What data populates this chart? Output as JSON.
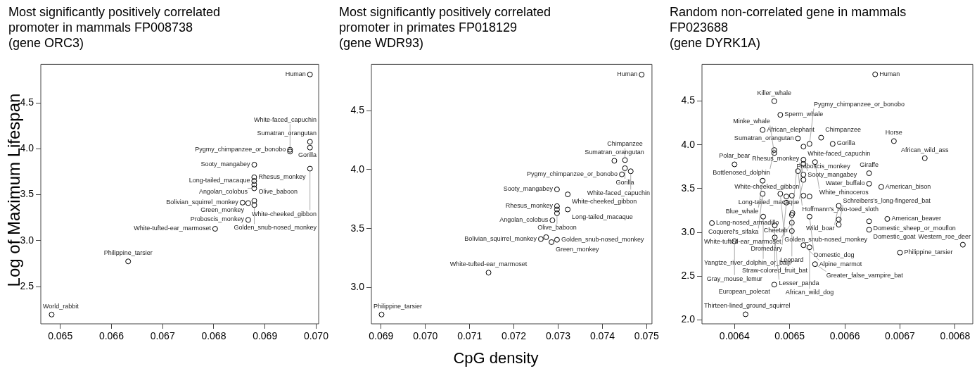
{
  "chart_data": [
    {
      "type": "scatter",
      "title": "Most significantly positively correlated\npromoter in mammals FP008738\n(gene ORC3)",
      "ylabel": "Log of Maximum Lifespan",
      "xlim": [
        0.06462,
        0.07005
      ],
      "ylim": [
        2.094,
        4.92
      ],
      "xticks": [
        0.065,
        0.066,
        0.067,
        0.068,
        0.069,
        {
          "value": 0.07,
          "label": "0.070"
        }
      ],
      "yticks": [
        2.5,
        {
          "value": 3,
          "label": "3.0"
        },
        3.5,
        {
          "value": 4,
          "label": "4.0"
        },
        4.5
      ],
      "grid": false,
      "marker": "circle",
      "series": [
        {
          "color": "#000000",
          "x": [
            0.06988,
            0.06988,
            0.06988,
            0.06949,
            0.06949,
            0.06988,
            0.068792,
            0.06879,
            0.06879,
            0.06879,
            0.06879,
            0.068562,
            0.068673,
            0.068792,
            0.068792,
            0.068673,
            0.068027,
            0.066327,
            0.064832
          ],
          "values": [
            4.81,
            4.076,
            4.013,
            3.99,
            3.97,
            3.784,
            3.827,
            3.69,
            3.65,
            3.61,
            3.57,
            3.414,
            3.409,
            3.434,
            3.388,
            3.226,
            3.129,
            2.774,
            2.195
          ]
        }
      ],
      "annotations": [
        {
          "text": "Human",
          "x": 0.06988,
          "y": 4.81
        },
        {
          "text": "Sumatran_orangutan",
          "x": 0.06988,
          "y": 4.076
        },
        {
          "text": "Gorilla",
          "x": 0.06988,
          "y": 4.013
        },
        {
          "text": "Pygmy_chimpanzee_or_bonobo",
          "x": 0.06949,
          "y": 3.99
        },
        {
          "text": "White-faced_capuchin",
          "x": 0.06949,
          "y": 3.97
        },
        {
          "text": "White-cheeked_gibbon",
          "x": 0.06988,
          "y": 3.784
        },
        {
          "text": "Sooty_mangabey",
          "x": 0.068792,
          "y": 3.827
        },
        {
          "text": "Rhesus_monkey",
          "x": 0.06879,
          "y": 3.69
        },
        {
          "text": "Long-tailed_macaque",
          "x": 0.06879,
          "y": 3.65
        },
        {
          "text": "Olive_baboon",
          "x": 0.06879,
          "y": 3.61
        },
        {
          "text": "Angolan_colobus",
          "x": 0.06879,
          "y": 3.57
        },
        {
          "text": "Bolivian_squirrel_monkey",
          "x": 0.068562,
          "y": 3.414
        },
        {
          "text": "Green_monkey",
          "x": 0.068673,
          "y": 3.409
        },
        {
          "text": "Golden_snub-nosed_monkey",
          "x": 0.068792,
          "y": 3.388
        },
        {
          "text": "Proboscis_monkey",
          "x": 0.068673,
          "y": 3.226
        },
        {
          "text": "White-tufted-ear_marmoset",
          "x": 0.068027,
          "y": 3.129
        },
        {
          "text": "Philippine_tarsier",
          "x": 0.066327,
          "y": 2.774
        },
        {
          "text": "World_rabbit",
          "x": 0.064832,
          "y": 2.195
        }
      ]
    },
    {
      "type": "scatter",
      "title": "Most significantly positively correlated\npromoter in primates FP018129\n(gene WDR93)",
      "xlabel": "CpG density",
      "xlim": [
        0.06878,
        0.07512
      ],
      "ylim": [
        2.692,
        4.893
      ],
      "xticks": [
        0.069,
        {
          "value": 0.07,
          "label": "0.070"
        },
        0.071,
        0.072,
        0.073,
        0.074,
        0.075
      ],
      "yticks": [
        {
          "value": 3,
          "label": "3.0"
        },
        3.5,
        {
          "value": 4,
          "label": "4.0"
        },
        4.5
      ],
      "grid": false,
      "marker": "circle",
      "series": [
        {
          "color": "#000000",
          "x": [
            0.074887,
            0.07427,
            0.07451,
            0.07451,
            0.07444,
            0.07464,
            0.072974,
            0.073216,
            0.072974,
            0.072974,
            0.073216,
            0.072974,
            0.07287,
            0.072609,
            0.072728,
            0.07285,
            0.072974,
            0.071427,
            0.06901
          ],
          "values": [
            4.806,
            4.075,
            4.081,
            4.012,
            3.96,
            3.986,
            3.832,
            3.79,
            3.69,
            3.662,
            3.662,
            3.63,
            3.57,
            3.411,
            3.427,
            3.385,
            3.405,
            3.126,
            2.771
          ]
        }
      ],
      "annotations": [
        {
          "text": "Human",
          "x": 0.074887,
          "y": 4.806
        },
        {
          "text": "Sumatran_orangutan",
          "x": 0.07427,
          "y": 4.075
        },
        {
          "text": "Chimpanzee",
          "x": 0.07451,
          "y": 4.081
        },
        {
          "text": "Gorilla",
          "x": 0.07451,
          "y": 4.012
        },
        {
          "text": "Pygmy_chimpanzee_or_bonobo",
          "x": 0.07444,
          "y": 3.96
        },
        {
          "text": "White-faced_capuchin",
          "x": 0.07464,
          "y": 3.986
        },
        {
          "text": "Sooty_mangabey",
          "x": 0.072974,
          "y": 3.832
        },
        {
          "text": "White-cheeked_gibbon",
          "x": 0.073216,
          "y": 3.79
        },
        {
          "text": "Rhesus_monkey",
          "x": 0.072974,
          "y": 3.69
        },
        {
          "text": "Long-tailed_macaque",
          "x": 0.073216,
          "y": 3.662
        },
        {
          "text": "Olive_baboon",
          "x": 0.072974,
          "y": 3.63
        },
        {
          "text": "Angolan_colobus",
          "x": 0.07287,
          "y": 3.57
        },
        {
          "text": "Bolivian_squirrel_monkey",
          "x": 0.072609,
          "y": 3.411
        },
        {
          "text": "Green_monkey",
          "x": 0.07285,
          "y": 3.385
        },
        {
          "text": "Golden_snub-nosed_monkey",
          "x": 0.072974,
          "y": 3.405
        },
        {
          "text": "White-tufted-ear_marmoset",
          "x": 0.071427,
          "y": 3.126
        },
        {
          "text": "Philippine_tarsier",
          "x": 0.06901,
          "y": 2.771
        }
      ]
    },
    {
      "type": "scatter",
      "title": "Random non-correlated gene in mammals\nFP023688\n(gene DYRK1A)",
      "xlim": [
        0.006341,
        0.006832
      ],
      "ylim": [
        1.955,
        4.92
      ],
      "xticks": [
        0.0064,
        0.0065,
        0.0066,
        0.0067,
        0.0068
      ],
      "yticks": [
        {
          "value": 2,
          "label": "2.0"
        },
        2.5,
        {
          "value": 3,
          "label": "3.0"
        },
        3.5,
        {
          "value": 4,
          "label": "4.0"
        },
        4.5
      ],
      "grid": false,
      "marker": "circle",
      "series": [
        {
          "color": "#000000",
          "x": [
            0.006655,
            0.006472,
            0.006483,
            0.006451,
            0.006689,
            0.006745,
            0.0064,
            0.006644,
            0.006644,
            0.006666,
            0.006515,
            0.006557,
            0.006536,
            0.006578,
            0.006525,
            0.006472,
            0.006472,
            0.006525,
            0.006546,
            0.006525,
            0.006515,
            0.006525,
            0.006525,
            0.006451,
            0.006451,
            0.006483,
            0.006494,
            0.006504,
            0.006525,
            0.006536,
            0.006589,
            0.006494,
            0.006504,
            0.006452,
            0.006359,
            0.006536,
            0.006505,
            0.006473,
            0.006504,
            0.006589,
            0.006589,
            0.006644,
            0.006677,
            0.006644,
            0.006504,
            0.006473,
            0.0064,
            0.006525,
            0.006536,
            0.006546,
            0.0067,
            0.006814,
            0.006472,
            0.00642
          ],
          "values": [
            4.806,
            4.5,
            4.343,
            4.17,
            4.043,
            3.848,
            3.777,
            3.676,
            3.556,
            3.519,
            4.074,
            4.082,
            4.011,
            4.011,
            3.98,
            3.941,
            3.907,
            3.83,
            3.803,
            3.782,
            3.7,
            3.66,
            3.6,
            3.59,
            3.441,
            3.441,
            3.41,
            3.42,
            3.42,
            3.41,
            3.303,
            3.34,
            3.2,
            3.18,
            3.106,
            3.18,
            3.22,
            3.08,
            3.11,
            3.149,
            3.088,
            3.127,
            3.154,
            3.03,
            3.016,
            2.942,
            2.899,
            2.854,
            2.83,
            2.637,
            2.769,
            2.859,
            2.403,
            2.064
          ]
        }
      ],
      "annotations": [
        {
          "text": "Human",
          "x": 0.006655,
          "y": 4.806
        },
        {
          "text": "Killer_whale",
          "x": 0.006472,
          "y": 4.5
        },
        {
          "text": "Sperm_whale",
          "x": 0.006483,
          "y": 4.343
        },
        {
          "text": "African_elephant",
          "x": 0.006451,
          "y": 4.17
        },
        {
          "text": "Horse",
          "x": 0.006689,
          "y": 4.043
        },
        {
          "text": "African_wild_ass",
          "x": 0.006745,
          "y": 3.848
        },
        {
          "text": "Polar_bear",
          "x": 0.0064,
          "y": 3.777
        },
        {
          "text": "Giraffe",
          "x": 0.006644,
          "y": 3.676
        },
        {
          "text": "Water_buffalo",
          "x": 0.006644,
          "y": 3.556
        },
        {
          "text": "American_bison",
          "x": 0.006666,
          "y": 3.519
        },
        {
          "text": "Sumatran_orangutan",
          "x": 0.006515,
          "y": 4.074
        },
        {
          "text": "Chimpanzee",
          "x": 0.006557,
          "y": 4.082
        },
        {
          "text": "Pygmy_chimpanzee_or_bonobo",
          "x": 0.006536,
          "y": 4.011
        },
        {
          "text": "Gorilla",
          "x": 0.006578,
          "y": 4.011
        },
        {
          "text": "White-faced_capuchin",
          "x": 0.006525,
          "y": 3.98
        },
        {
          "text": "Bottlenosed_dolphin",
          "x": 0.006472,
          "y": 3.941
        },
        {
          "text": "Minke_whale",
          "x": 0.006472,
          "y": 3.907
        },
        {
          "text": "Sooty_mangabey",
          "x": 0.006525,
          "y": 3.83
        },
        {
          "text": "White_rhinoceros",
          "x": 0.006546,
          "y": 3.803
        },
        {
          "text": "White-cheeked_gibbon",
          "x": 0.006525,
          "y": 3.782
        },
        {
          "text": "Hoffmann's_two-toed_sloth",
          "x": 0.006515,
          "y": 3.7
        },
        {
          "text": "Rhesus_monkey",
          "x": 0.006525,
          "y": 3.66
        },
        {
          "text": "Long-tailed_macaque",
          "x": 0.006525,
          "y": 3.6
        },
        {
          "text": "Blue_whale",
          "x": 0.006451,
          "y": 3.59
        },
        {
          "text": "Coquerel's_sifaka",
          "x": 0.006451,
          "y": 3.441
        },
        {
          "text": "Golden_snub-nosed_monkey",
          "x": 0.006483,
          "y": 3.441
        },
        {
          "text": "Wild_boar",
          "x": 0.006589,
          "y": 3.303
        },
        {
          "text": "Dromedary",
          "x": 0.006494,
          "y": 3.34
        },
        {
          "text": "Leopard",
          "x": 0.006504,
          "y": 3.2
        },
        {
          "text": "Yangtze_river_dolphin_or_baiji",
          "x": 0.006452,
          "y": 3.18
        },
        {
          "text": "Long-nosed_armadillo",
          "x": 0.006359,
          "y": 3.106
        },
        {
          "text": "Domestic_dog",
          "x": 0.006536,
          "y": 3.18
        },
        {
          "text": "Proboscis_monkey",
          "x": 0.006505,
          "y": 3.22
        },
        {
          "text": "Straw-colored_fruit_bat",
          "x": 0.006473,
          "y": 3.08
        },
        {
          "text": "White-tufted-ear_marmoset",
          "x": 0.006504,
          "y": 3.11
        },
        {
          "text": "Schreibers's_long-fingered_bat",
          "x": 0.006589,
          "y": 3.088
        },
        {
          "text": "Domestic_sheep_or_mouflon",
          "x": 0.006644,
          "y": 3.127
        },
        {
          "text": "American_beaver",
          "x": 0.006677,
          "y": 3.154
        },
        {
          "text": "Domestic_goat",
          "x": 0.006644,
          "y": 3.03
        },
        {
          "text": "Cheetah",
          "x": 0.006504,
          "y": 3.016
        },
        {
          "text": "Lesser_panda",
          "x": 0.006473,
          "y": 2.942
        },
        {
          "text": "Gray_mouse_lemur",
          "x": 0.0064,
          "y": 2.899
        },
        {
          "text": "Alpine_marmot",
          "x": 0.006525,
          "y": 2.854
        },
        {
          "text": "African_wild_dog",
          "x": 0.006536,
          "y": 2.83
        },
        {
          "text": "Greater_false_vampire_bat",
          "x": 0.006546,
          "y": 2.637
        },
        {
          "text": "Philippine_tarsier",
          "x": 0.0067,
          "y": 2.769
        },
        {
          "text": "Western_roe_deer",
          "x": 0.006814,
          "y": 2.859
        },
        {
          "text": "European_polecat",
          "x": 0.006472,
          "y": 2.403
        },
        {
          "text": "Thirteen-lined_ground_squirrel",
          "x": 0.00642,
          "y": 2.064
        }
      ]
    }
  ]
}
